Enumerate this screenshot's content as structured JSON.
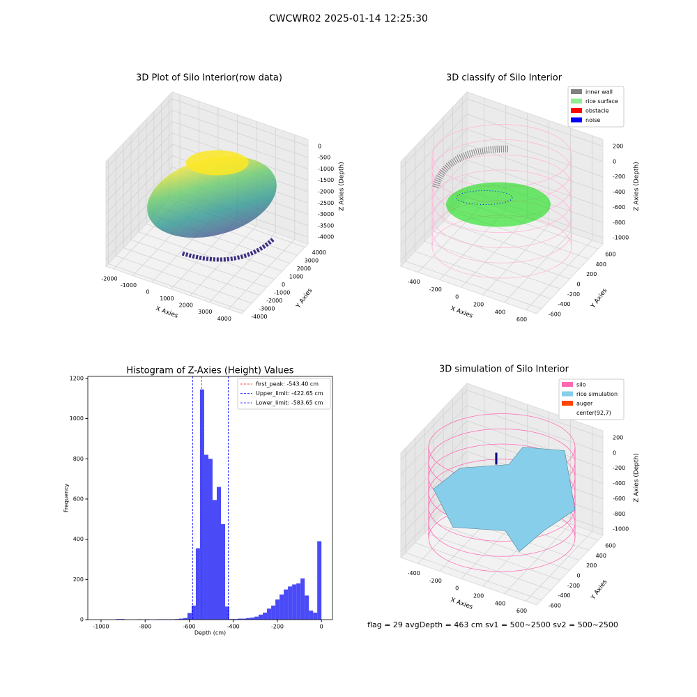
{
  "title": "CWCWR02 2025-01-14 12:25:30",
  "footer": "flag = 29  avgDepth = 463 cm  sv1 = 500~2500  sv2 = 500~2500",
  "chart_data": [
    {
      "type": "scatter3d",
      "title": "3D Plot of Silo Interior(row data)",
      "xlabel": "X Axies",
      "ylabel": "Y Axies",
      "zlabel": "Z Axies (Depth)",
      "xlim": [
        -2400,
        4700
      ],
      "ylim": [
        -4300,
        4400
      ],
      "zlim": [
        -4300,
        300
      ],
      "xticks": [
        -2000,
        -1000,
        0,
        1000,
        2000,
        3000,
        4000
      ],
      "yticks": [
        -4000,
        -3000,
        -2000,
        -1000,
        0,
        1000,
        2000,
        3000,
        4000
      ],
      "zticks": [
        -4000,
        -3500,
        -3000,
        -2500,
        -2000,
        -1500,
        -1000,
        -500,
        0
      ]
    },
    {
      "type": "classify3d",
      "title": "3D classify of Silo Interior",
      "xlabel": "X Axies",
      "ylabel": "Y Axies",
      "zlabel": "Z Axies (Depth)",
      "xlim": [
        -560,
        700
      ],
      "ylim": [
        -700,
        700
      ],
      "zlim": [
        -1080,
        290
      ],
      "xticks": [
        -400,
        -200,
        0,
        200,
        400,
        600
      ],
      "yticks": [
        -600,
        -400,
        -200,
        0,
        200,
        400,
        600
      ],
      "zticks": [
        -1000,
        -800,
        -600,
        -400,
        -200,
        0,
        200
      ],
      "legend": [
        {
          "name": "inner wall",
          "color": "#808080"
        },
        {
          "name": "rice surface",
          "color": "#90ee90"
        },
        {
          "name": "obstacle",
          "color": "#ff0000"
        },
        {
          "name": "noise",
          "color": "#0000ff"
        }
      ]
    },
    {
      "type": "histogram",
      "title": "Histogram of Z-Axies (Height) Values",
      "xlabel": "Depth (cm)",
      "ylabel": "Frequency",
      "color": "#4a4af7",
      "bins": [
        -1045,
        -1026,
        -1007,
        -988,
        -969,
        -950,
        -931,
        -912,
        -893,
        -874,
        -855,
        -836,
        -817,
        -798,
        -779,
        -760,
        -741,
        -722,
        -703,
        -684,
        -665,
        -646,
        -627,
        -608,
        -589,
        -570,
        -551,
        -532,
        -513,
        -494,
        -475,
        -456,
        -437,
        -418,
        -399,
        -380,
        -361,
        -342,
        -323,
        -304,
        -285,
        -266,
        -247,
        -228,
        -209,
        -190,
        -171,
        -152,
        -133,
        -114,
        -95,
        -76,
        -57,
        -38,
        -19,
        0
      ],
      "values": [
        0,
        0,
        0,
        0,
        0,
        0,
        3,
        3,
        0,
        0,
        0,
        2,
        0,
        2,
        0,
        1,
        2,
        2,
        2,
        2,
        3,
        5,
        8,
        33,
        70,
        355,
        1145,
        820,
        800,
        595,
        660,
        475,
        65,
        3,
        3,
        5,
        5,
        8,
        10,
        15,
        25,
        35,
        55,
        70,
        100,
        125,
        150,
        165,
        175,
        180,
        205,
        120,
        45,
        35,
        390
      ],
      "xlim": [
        -1060,
        50
      ],
      "ylim": [
        0,
        1210
      ],
      "xticks": [
        -1000,
        -800,
        -600,
        -400,
        -200,
        0
      ],
      "yticks": [
        0,
        200,
        400,
        600,
        800,
        1000,
        1200
      ],
      "vlines": [
        {
          "name": "first_peak: -543.40 cm",
          "value": -543.4,
          "color": "#ff0000"
        },
        {
          "name": "Upper_limit: -422.65 cm",
          "value": -422.65,
          "color": "#0000ff"
        },
        {
          "name": "Lower_limit: -583.65 cm",
          "value": -583.65,
          "color": "#0000ff"
        }
      ]
    },
    {
      "type": "surface3d",
      "title": "3D simulation of Silo Interior",
      "xlabel": "X Axies",
      "ylabel": "Y Axies",
      "zlabel": "Z Axies (Depth)",
      "xlim": [
        -560,
        700
      ],
      "ylim": [
        -700,
        700
      ],
      "zlim": [
        -1080,
        290
      ],
      "xticks": [
        -400,
        -200,
        0,
        200,
        400,
        600
      ],
      "yticks": [
        -600,
        -400,
        -200,
        0,
        200,
        400,
        600
      ],
      "zticks": [
        -1000,
        -800,
        -600,
        -400,
        -200,
        0,
        200
      ],
      "legend": [
        {
          "name": "silo",
          "color": "#ff69b4"
        },
        {
          "name": "rice simulation",
          "color": "#87ceeb"
        },
        {
          "name": "auger",
          "color": "#ff4500"
        },
        {
          "name": "center(92,7)",
          "color": "#ffffff"
        }
      ]
    }
  ]
}
